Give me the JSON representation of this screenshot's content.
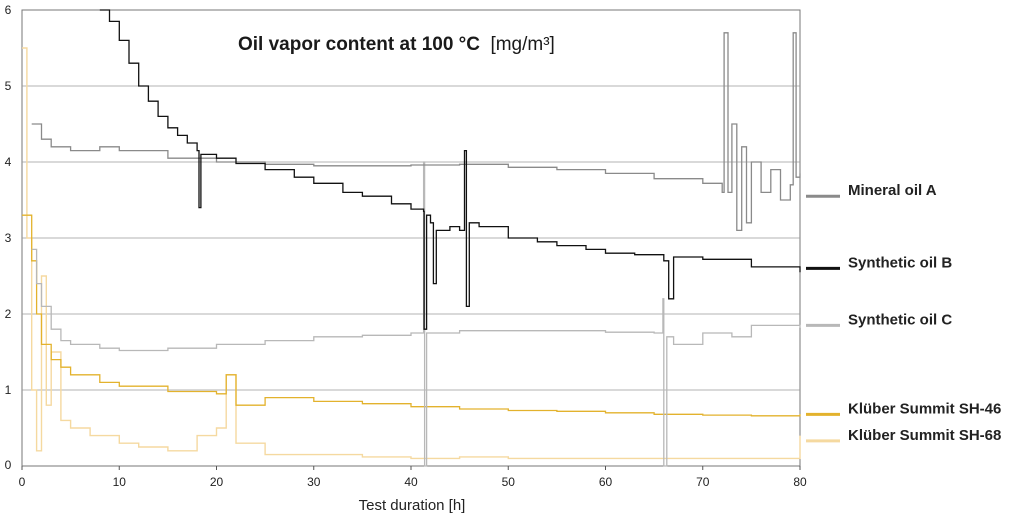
{
  "chart_data": {
    "type": "line",
    "title": "Oil vapor content at 100 °C",
    "title_unit": "[mg/m³]",
    "xlabel": "Test duration [h]",
    "ylabel": "",
    "xlim": [
      0,
      80
    ],
    "ylim": [
      0,
      6
    ],
    "x_ticks": [
      "0",
      "10",
      "20",
      "30",
      "40",
      "50",
      "60",
      "70",
      "80"
    ],
    "y_ticks": [
      "0",
      "1",
      "2",
      "3",
      "4",
      "5",
      "6"
    ],
    "grid": "horizontal",
    "legend_position": "right",
    "series": [
      {
        "name": "Mineral oil A",
        "color": "#8a8a8a",
        "legend_y": 3.55,
        "points": [
          [
            1,
            4.5
          ],
          [
            2,
            4.3
          ],
          [
            3,
            4.2
          ],
          [
            5,
            4.15
          ],
          [
            8,
            4.2
          ],
          [
            10,
            4.15
          ],
          [
            15,
            4.05
          ],
          [
            20,
            4.0
          ],
          [
            25,
            3.97
          ],
          [
            30,
            3.95
          ],
          [
            35,
            3.95
          ],
          [
            40,
            3.96
          ],
          [
            45,
            3.97
          ],
          [
            50,
            3.93
          ],
          [
            55,
            3.9
          ],
          [
            60,
            3.85
          ],
          [
            65,
            3.78
          ],
          [
            70,
            3.72
          ],
          [
            72,
            3.6
          ],
          [
            72.2,
            5.7
          ],
          [
            72.6,
            3.6
          ],
          [
            73,
            4.5
          ],
          [
            73.5,
            3.1
          ],
          [
            74,
            4.2
          ],
          [
            74.5,
            3.2
          ],
          [
            75,
            4.0
          ],
          [
            76,
            3.6
          ],
          [
            77,
            3.9
          ],
          [
            78,
            3.5
          ],
          [
            79,
            3.7
          ],
          [
            79.3,
            5.7
          ],
          [
            79.6,
            3.8
          ],
          [
            80,
            3.85
          ]
        ]
      },
      {
        "name": "Synthetic oil B",
        "color": "#111111",
        "legend_y": 2.6,
        "points": [
          [
            8,
            6.0
          ],
          [
            9,
            5.85
          ],
          [
            10,
            5.6
          ],
          [
            11,
            5.3
          ],
          [
            12,
            5.0
          ],
          [
            13,
            4.8
          ],
          [
            14,
            4.6
          ],
          [
            15,
            4.45
          ],
          [
            16,
            4.35
          ],
          [
            17,
            4.25
          ],
          [
            18,
            4.15
          ],
          [
            18.2,
            3.4
          ],
          [
            18.4,
            4.1
          ],
          [
            20,
            4.05
          ],
          [
            22,
            3.98
          ],
          [
            25,
            3.9
          ],
          [
            28,
            3.8
          ],
          [
            30,
            3.72
          ],
          [
            33,
            3.6
          ],
          [
            35,
            3.55
          ],
          [
            38,
            3.45
          ],
          [
            40,
            3.38
          ],
          [
            41.3,
            3.35
          ],
          [
            41.35,
            1.8
          ],
          [
            41.6,
            3.3
          ],
          [
            42,
            3.2
          ],
          [
            42.3,
            2.4
          ],
          [
            42.6,
            3.1
          ],
          [
            44,
            3.15
          ],
          [
            45,
            3.1
          ],
          [
            45.5,
            4.15
          ],
          [
            45.7,
            2.1
          ],
          [
            46,
            3.2
          ],
          [
            47,
            3.15
          ],
          [
            50,
            3.0
          ],
          [
            53,
            2.95
          ],
          [
            55,
            2.9
          ],
          [
            58,
            2.85
          ],
          [
            60,
            2.8
          ],
          [
            63,
            2.78
          ],
          [
            66,
            2.7
          ],
          [
            66.5,
            2.2
          ],
          [
            67,
            2.75
          ],
          [
            70,
            2.72
          ],
          [
            75,
            2.62
          ],
          [
            80,
            2.55
          ]
        ]
      },
      {
        "name": "Synthetic oil C",
        "color": "#b8b8b8",
        "legend_y": 1.85,
        "points": [
          [
            1,
            2.85
          ],
          [
            1.5,
            2.4
          ],
          [
            2,
            2.1
          ],
          [
            3,
            1.8
          ],
          [
            4,
            1.65
          ],
          [
            5,
            1.6
          ],
          [
            8,
            1.55
          ],
          [
            10,
            1.52
          ],
          [
            15,
            1.55
          ],
          [
            20,
            1.6
          ],
          [
            25,
            1.65
          ],
          [
            30,
            1.7
          ],
          [
            35,
            1.72
          ],
          [
            40,
            1.75
          ],
          [
            41.2,
            1.75
          ],
          [
            41.3,
            4.0
          ],
          [
            41.4,
            0
          ],
          [
            41.6,
            1.75
          ],
          [
            45,
            1.78
          ],
          [
            50,
            1.78
          ],
          [
            55,
            1.78
          ],
          [
            60,
            1.76
          ],
          [
            65,
            1.75
          ],
          [
            65.8,
            1.75
          ],
          [
            65.9,
            2.2
          ],
          [
            66,
            0
          ],
          [
            66.3,
            1.7
          ],
          [
            67,
            1.6
          ],
          [
            70,
            1.75
          ],
          [
            73,
            1.7
          ],
          [
            75,
            1.85
          ],
          [
            80,
            1.82
          ]
        ]
      },
      {
        "name": "Klüber Summit SH-46",
        "color": "#e3b22d",
        "legend_y": 0.68,
        "points": [
          [
            0,
            3.3
          ],
          [
            1,
            2.7
          ],
          [
            1.5,
            2.0
          ],
          [
            2,
            1.6
          ],
          [
            3,
            1.4
          ],
          [
            4,
            1.3
          ],
          [
            5,
            1.2
          ],
          [
            8,
            1.1
          ],
          [
            10,
            1.05
          ],
          [
            15,
            0.98
          ],
          [
            20,
            0.95
          ],
          [
            21,
            1.2
          ],
          [
            22,
            0.8
          ],
          [
            25,
            0.9
          ],
          [
            30,
            0.85
          ],
          [
            35,
            0.82
          ],
          [
            40,
            0.78
          ],
          [
            45,
            0.75
          ],
          [
            50,
            0.73
          ],
          [
            55,
            0.72
          ],
          [
            60,
            0.7
          ],
          [
            65,
            0.68
          ],
          [
            70,
            0.67
          ],
          [
            75,
            0.66
          ],
          [
            80,
            0.68
          ]
        ]
      },
      {
        "name": "Klüber Summit SH-68",
        "color": "#f5d9a0",
        "legend_y": 0.33,
        "points": [
          [
            0,
            5.5
          ],
          [
            0.5,
            3.0
          ],
          [
            1,
            1.0
          ],
          [
            1.5,
            0.2
          ],
          [
            2,
            2.5
          ],
          [
            2.5,
            0.8
          ],
          [
            3,
            1.5
          ],
          [
            4,
            0.6
          ],
          [
            5,
            0.5
          ],
          [
            7,
            0.4
          ],
          [
            10,
            0.3
          ],
          [
            12,
            0.25
          ],
          [
            15,
            0.2
          ],
          [
            18,
            0.4
          ],
          [
            20,
            0.5
          ],
          [
            21,
            1.2
          ],
          [
            22,
            0.3
          ],
          [
            25,
            0.15
          ],
          [
            30,
            0.15
          ],
          [
            35,
            0.12
          ],
          [
            40,
            0.1
          ],
          [
            45,
            0.12
          ],
          [
            50,
            0.1
          ],
          [
            55,
            0.1
          ],
          [
            60,
            0.1
          ],
          [
            65,
            0.1
          ],
          [
            70,
            0.1
          ],
          [
            75,
            0.1
          ],
          [
            78,
            0.1
          ],
          [
            80,
            0.4
          ]
        ]
      }
    ]
  }
}
